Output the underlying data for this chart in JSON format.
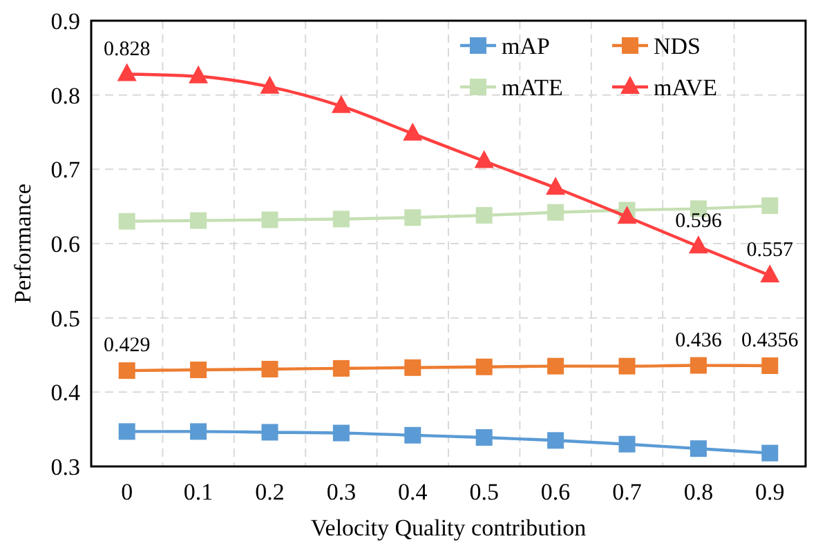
{
  "chart_data": {
    "type": "line",
    "xlabel": "Velocity Quality contribution",
    "ylabel": "Performance",
    "categories": [
      "0",
      "0.1",
      "0.2",
      "0.3",
      "0.4",
      "0.5",
      "0.6",
      "0.7",
      "0.8",
      "0.9"
    ],
    "series": [
      {
        "name": "mAP",
        "color": "#5b9bd5",
        "marker": "square",
        "values": [
          0.347,
          0.347,
          0.346,
          0.345,
          0.342,
          0.339,
          0.335,
          0.33,
          0.324,
          0.318
        ]
      },
      {
        "name": "NDS",
        "color": "#ed7d31",
        "marker": "square",
        "values": [
          0.429,
          0.43,
          0.431,
          0.432,
          0.433,
          0.434,
          0.435,
          0.435,
          0.436,
          0.4356
        ],
        "value_labels": [
          "0.429",
          null,
          null,
          null,
          null,
          null,
          null,
          null,
          "0.436",
          "0.4356"
        ]
      },
      {
        "name": "mATE",
        "color": "#c5e0b4",
        "marker": "square",
        "values": [
          0.63,
          0.631,
          0.632,
          0.633,
          0.635,
          0.638,
          0.642,
          0.645,
          0.647,
          0.651
        ]
      },
      {
        "name": "mAVE",
        "color": "#ff4040",
        "marker": "triangle",
        "values": [
          0.828,
          0.825,
          0.811,
          0.785,
          0.748,
          0.711,
          0.675,
          0.636,
          0.596,
          0.557
        ],
        "value_labels": [
          "0.828",
          null,
          null,
          null,
          null,
          null,
          null,
          null,
          "0.596",
          "0.557"
        ]
      }
    ],
    "ylim": [
      0.3,
      0.9
    ],
    "yticks": [
      0.3,
      0.4,
      0.5,
      0.6,
      0.7,
      0.8,
      0.9
    ],
    "grid": true,
    "legend": "top right",
    "line_style": "solid"
  }
}
